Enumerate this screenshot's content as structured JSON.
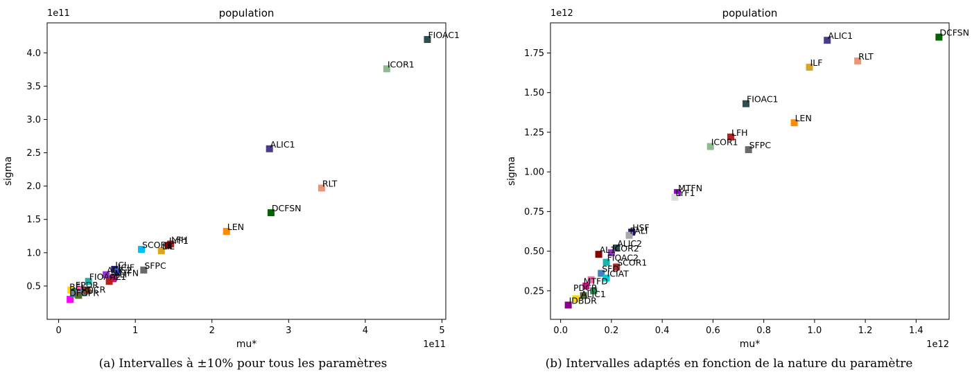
{
  "captions": {
    "a": "(a) Intervalles à ±10% pour tous les paramètres",
    "b": "(b) Intervalles adaptés en fonction de la nature du paramètre"
  },
  "chart_data": [
    {
      "type": "scatter",
      "title": "population",
      "xlabel": "mu*",
      "ylabel": "sigma",
      "x_offset_text": "1e11",
      "y_offset_text": "1e11",
      "xlim": [
        -0.15,
        5.05
      ],
      "ylim": [
        0.0,
        4.45
      ],
      "xticks": [
        0,
        1,
        2,
        3,
        4,
        5
      ],
      "xtick_labels": [
        "0",
        "1",
        "2",
        "3",
        "4",
        "5"
      ],
      "yticks": [
        0.5,
        1.0,
        1.5,
        2.0,
        2.5,
        3.0,
        3.5,
        4.0
      ],
      "ytick_labels": [
        "0.5",
        "1.0",
        "1.5",
        "2.0",
        "2.5",
        "3.0",
        "3.5",
        "4.0"
      ],
      "grid": false,
      "marker": "square",
      "points": [
        {
          "label": "FIOAC1",
          "x": 4.81,
          "y": 4.2,
          "color": "#2f4f4f"
        },
        {
          "label": "ICOR1",
          "x": 4.28,
          "y": 3.76,
          "color": "#8fbc8f"
        },
        {
          "label": "ALIC1",
          "x": 2.75,
          "y": 2.56,
          "color": "#483d8b"
        },
        {
          "label": "RLT",
          "x": 3.43,
          "y": 1.97,
          "color": "#e9967a"
        },
        {
          "label": "DCFSN",
          "x": 2.77,
          "y": 1.6,
          "color": "#006400"
        },
        {
          "label": "LEN",
          "x": 2.19,
          "y": 1.32,
          "color": "#ff8c00"
        },
        {
          "label": "LFH",
          "x": 1.46,
          "y": 1.13,
          "color": "#a52a2a"
        },
        {
          "label": "LYF1",
          "x": 1.43,
          "y": 1.11,
          "color": "#8b0000"
        },
        {
          "label": "LIL",
          "x": 1.34,
          "y": 1.03,
          "color": "#daa520"
        },
        {
          "label": "SCOR1",
          "x": 1.08,
          "y": 1.05,
          "color": "#00bfff"
        },
        {
          "label": "SFPC",
          "x": 1.11,
          "y": 0.74,
          "color": "#696969"
        },
        {
          "label": "ICI",
          "x": 0.73,
          "y": 0.75,
          "color": "#191970"
        },
        {
          "label": "ICIF",
          "x": 0.77,
          "y": 0.71,
          "color": "#4169e1"
        },
        {
          "label": "ALIC2",
          "x": 0.62,
          "y": 0.67,
          "color": "#9932cc"
        },
        {
          "label": "MTFN",
          "x": 0.72,
          "y": 0.63,
          "color": "#483d8b"
        },
        {
          "label": "ALI",
          "x": 0.71,
          "y": 0.61,
          "color": "#c71585"
        },
        {
          "label": "FIOAC2",
          "x": 0.39,
          "y": 0.57,
          "color": "#20b2aa"
        },
        {
          "label": "AL1",
          "x": 0.66,
          "y": 0.57,
          "color": "#b22222"
        },
        {
          "label": "",
          "x": 0.15,
          "y": 0.3,
          "color": "#ff00ff"
        },
        {
          "label": "",
          "x": 0.16,
          "y": 0.44,
          "color": "#ffd700"
        },
        {
          "label": "",
          "x": 0.22,
          "y": 0.42,
          "color": "#2e8b57"
        },
        {
          "label": "",
          "x": 0.28,
          "y": 0.45,
          "color": "#ff69b4"
        },
        {
          "label": "",
          "x": 0.33,
          "y": 0.4,
          "color": "#4682b4"
        },
        {
          "label": "",
          "x": 0.37,
          "y": 0.43,
          "color": "#8b4513"
        },
        {
          "label": "",
          "x": 0.2,
          "y": 0.38,
          "color": "#708090"
        },
        {
          "label": "",
          "x": 0.26,
          "y": 0.36,
          "color": "#556b2f"
        }
      ],
      "cluster_labels": [
        {
          "text": "BEL",
          "x": 0.14,
          "y": 0.44
        },
        {
          "text": "DFOPR",
          "x": 0.14,
          "y": 0.35
        },
        {
          "text": "PDCR",
          "x": 0.3,
          "y": 0.4
        },
        {
          "text": "FPDR",
          "x": 0.22,
          "y": 0.47
        }
      ]
    },
    {
      "type": "scatter",
      "title": "population",
      "xlabel": "mu*",
      "ylabel": "sigma",
      "x_offset_text": "1e12",
      "y_offset_text": "1e12",
      "xlim": [
        -0.04,
        1.53
      ],
      "ylim": [
        0.07,
        1.94
      ],
      "xticks": [
        0.0,
        0.2,
        0.4,
        0.6,
        0.8,
        1.0,
        1.2,
        1.4
      ],
      "xtick_labels": [
        "0.0",
        "0.2",
        "0.4",
        "0.6",
        "0.8",
        "1.0",
        "1.2",
        "1.4"
      ],
      "yticks": [
        0.25,
        0.5,
        0.75,
        1.0,
        1.25,
        1.5,
        1.75
      ],
      "ytick_labels": [
        "0.25",
        "0.50",
        "0.75",
        "1.00",
        "1.25",
        "1.50",
        "1.75"
      ],
      "grid": false,
      "marker": "square",
      "points": [
        {
          "label": "DCFSN",
          "x": 1.49,
          "y": 1.85,
          "color": "#006400"
        },
        {
          "label": "ALIC1",
          "x": 1.05,
          "y": 1.83,
          "color": "#483d8b"
        },
        {
          "label": "RLT",
          "x": 1.17,
          "y": 1.7,
          "color": "#e9967a"
        },
        {
          "label": "ILF",
          "x": 0.98,
          "y": 1.66,
          "color": "#daa520"
        },
        {
          "label": "FIOAC1",
          "x": 0.73,
          "y": 1.43,
          "color": "#2f4f4f"
        },
        {
          "label": "LEN",
          "x": 0.92,
          "y": 1.31,
          "color": "#ff8c00"
        },
        {
          "label": "LFH",
          "x": 0.67,
          "y": 1.22,
          "color": "#b22222"
        },
        {
          "label": "ICOR1",
          "x": 0.59,
          "y": 1.16,
          "color": "#8fbc8f"
        },
        {
          "label": "SFPC",
          "x": 0.74,
          "y": 1.14,
          "color": "#696969"
        },
        {
          "label": "MTFN",
          "x": 0.46,
          "y": 0.87,
          "color": "#9400d3"
        },
        {
          "label": "LYF1",
          "x": 0.45,
          "y": 0.84,
          "color": "#dcdcdc"
        },
        {
          "label": "HSF",
          "x": 0.28,
          "y": 0.62,
          "color": "#191970"
        },
        {
          "label": "PALI",
          "x": 0.27,
          "y": 0.6,
          "color": "#a9a9a9"
        },
        {
          "label": "ALIC2",
          "x": 0.22,
          "y": 0.52,
          "color": "#2f4f4f"
        },
        {
          "label": "ICOR2",
          "x": 0.2,
          "y": 0.49,
          "color": "#9932cc"
        },
        {
          "label": "AL1",
          "x": 0.15,
          "y": 0.48,
          "color": "#8b0000"
        },
        {
          "label": "FIOAC2",
          "x": 0.18,
          "y": 0.43,
          "color": "#20b2aa"
        },
        {
          "label": "SCOR1",
          "x": 0.22,
          "y": 0.4,
          "color": "#a52a2a"
        },
        {
          "label": "SFD",
          "x": 0.16,
          "y": 0.36,
          "color": "#4682b4"
        },
        {
          "label": "ICIAT",
          "x": 0.18,
          "y": 0.33,
          "color": "#00ced1"
        },
        {
          "label": "",
          "x": 0.12,
          "y": 0.32,
          "color": "#ff69b4"
        },
        {
          "label": "",
          "x": 0.1,
          "y": 0.28,
          "color": "#c71585"
        },
        {
          "label": "",
          "x": 0.13,
          "y": 0.25,
          "color": "#2e8b57"
        },
        {
          "label": "",
          "x": 0.06,
          "y": 0.2,
          "color": "#ffd700"
        },
        {
          "label": "",
          "x": 0.09,
          "y": 0.22,
          "color": "#556b2f"
        },
        {
          "label": "IDBDR",
          "x": 0.03,
          "y": 0.16,
          "color": "#8b008b"
        }
      ],
      "cluster_labels": [
        {
          "text": "PDCR",
          "x": 0.05,
          "y": 0.25
        },
        {
          "text": "MTFD",
          "x": 0.09,
          "y": 0.29
        },
        {
          "text": "ALIC1",
          "x": 0.08,
          "y": 0.21
        }
      ]
    }
  ]
}
